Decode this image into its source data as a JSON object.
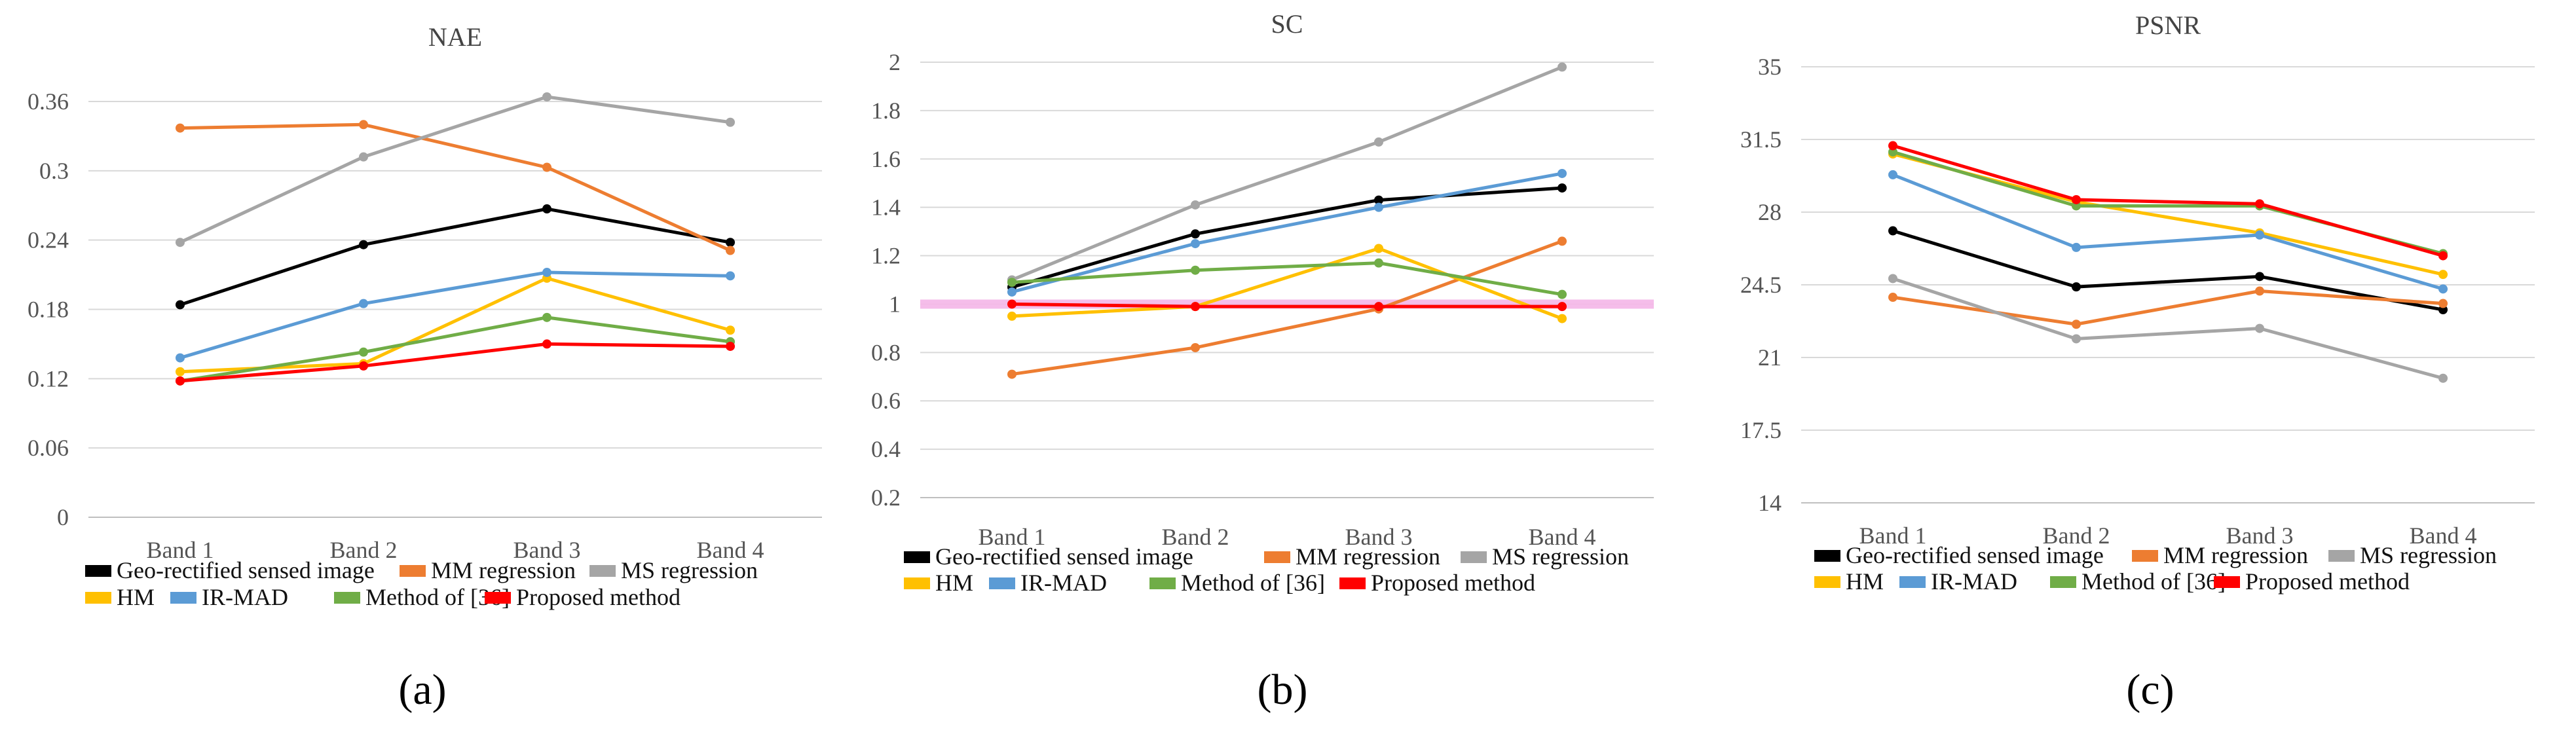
{
  "chart_data": [
    {
      "type": "line",
      "title": "NAE",
      "panel_label": "(a)",
      "categories": [
        "Band 1",
        "Band 2",
        "Band 3",
        "Band 4"
      ],
      "y_ticks": [
        "0",
        "0.06",
        "0.12",
        "0.18",
        "0.24",
        "0.3",
        "0.36"
      ],
      "ylim": [
        0,
        0.36
      ],
      "xlabel": "",
      "ylabel": "",
      "grid": true,
      "legend_position": "bottom",
      "series": [
        {
          "name": "Geo-rectified sensed image",
          "color": "#000000",
          "values": [
            0.184,
            0.236,
            0.267,
            0.238
          ]
        },
        {
          "name": "MM regression",
          "color": "#ed7d31",
          "values": [
            0.337,
            0.34,
            0.303,
            0.231
          ]
        },
        {
          "name": "MS regression",
          "color": "#a5a5a5",
          "values": [
            0.238,
            0.312,
            0.364,
            0.342
          ]
        },
        {
          "name": "HM",
          "color": "#ffc000",
          "values": [
            0.126,
            0.133,
            0.207,
            0.162
          ]
        },
        {
          "name": "IR-MAD",
          "color": "#5b9bd5",
          "values": [
            0.138,
            0.185,
            0.212,
            0.209
          ]
        },
        {
          "name": "Method of [36]",
          "color": "#70ad47",
          "values": [
            0.118,
            0.143,
            0.173,
            0.152
          ]
        },
        {
          "name": "Proposed method",
          "color": "#ff0000",
          "values": [
            0.118,
            0.131,
            0.15,
            0.148
          ]
        }
      ]
    },
    {
      "type": "line",
      "title": "SC",
      "panel_label": "(b)",
      "categories": [
        "Band 1",
        "Band 2",
        "Band 3",
        "Band 4"
      ],
      "y_ticks": [
        "0.2",
        "0.4",
        "0.6",
        "0.8",
        "1",
        "1.2",
        "1.4",
        "1.6",
        "1.8",
        "2"
      ],
      "ylim": [
        0.2,
        2.0
      ],
      "xlabel": "",
      "ylabel": "",
      "grid": true,
      "reference_line": {
        "value": 1,
        "color": "#f4b6e8"
      },
      "legend_position": "bottom",
      "series": [
        {
          "name": "Geo-rectified sensed image",
          "color": "#000000",
          "values": [
            1.07,
            1.29,
            1.43,
            1.48
          ]
        },
        {
          "name": "MM regression",
          "color": "#ed7d31",
          "values": [
            0.71,
            0.82,
            0.98,
            1.26
          ]
        },
        {
          "name": "MS regression",
          "color": "#a5a5a5",
          "values": [
            1.1,
            1.41,
            1.67,
            1.98
          ]
        },
        {
          "name": "HM",
          "color": "#ffc000",
          "values": [
            0.95,
            0.99,
            1.23,
            0.94
          ]
        },
        {
          "name": "IR-MAD",
          "color": "#5b9bd5",
          "values": [
            1.05,
            1.25,
            1.4,
            1.54
          ]
        },
        {
          "name": "Method of [36]",
          "color": "#70ad47",
          "values": [
            1.09,
            1.14,
            1.17,
            1.04
          ]
        },
        {
          "name": "Proposed method",
          "color": "#ff0000",
          "values": [
            1.0,
            0.99,
            0.99,
            0.99
          ]
        }
      ]
    },
    {
      "type": "line",
      "title": "PSNR",
      "panel_label": "(c)",
      "categories": [
        "Band 1",
        "Band 2",
        "Band 3",
        "Band 4"
      ],
      "y_ticks": [
        "14",
        "17.5",
        "21",
        "24.5",
        "28",
        "31.5",
        "35"
      ],
      "ylim": [
        14,
        35
      ],
      "xlabel": "",
      "ylabel": "",
      "grid": true,
      "legend_position": "bottom",
      "series": [
        {
          "name": "Geo-rectified sensed image",
          "color": "#000000",
          "values": [
            27.1,
            24.4,
            24.9,
            23.3
          ]
        },
        {
          "name": "MM regression",
          "color": "#ed7d31",
          "values": [
            23.9,
            22.6,
            24.2,
            23.6
          ]
        },
        {
          "name": "MS regression",
          "color": "#a5a5a5",
          "values": [
            24.8,
            21.9,
            22.4,
            20.0
          ]
        },
        {
          "name": "HM",
          "color": "#ffc000",
          "values": [
            30.8,
            28.5,
            27.0,
            25.0
          ]
        },
        {
          "name": "IR-MAD",
          "color": "#5b9bd5",
          "values": [
            29.8,
            26.3,
            26.9,
            24.3
          ]
        },
        {
          "name": "Method of [36]",
          "color": "#70ad47",
          "values": [
            30.9,
            28.3,
            28.3,
            26.0
          ]
        },
        {
          "name": "Proposed method",
          "color": "#ff0000",
          "values": [
            31.2,
            28.6,
            28.4,
            25.9
          ]
        }
      ]
    }
  ]
}
